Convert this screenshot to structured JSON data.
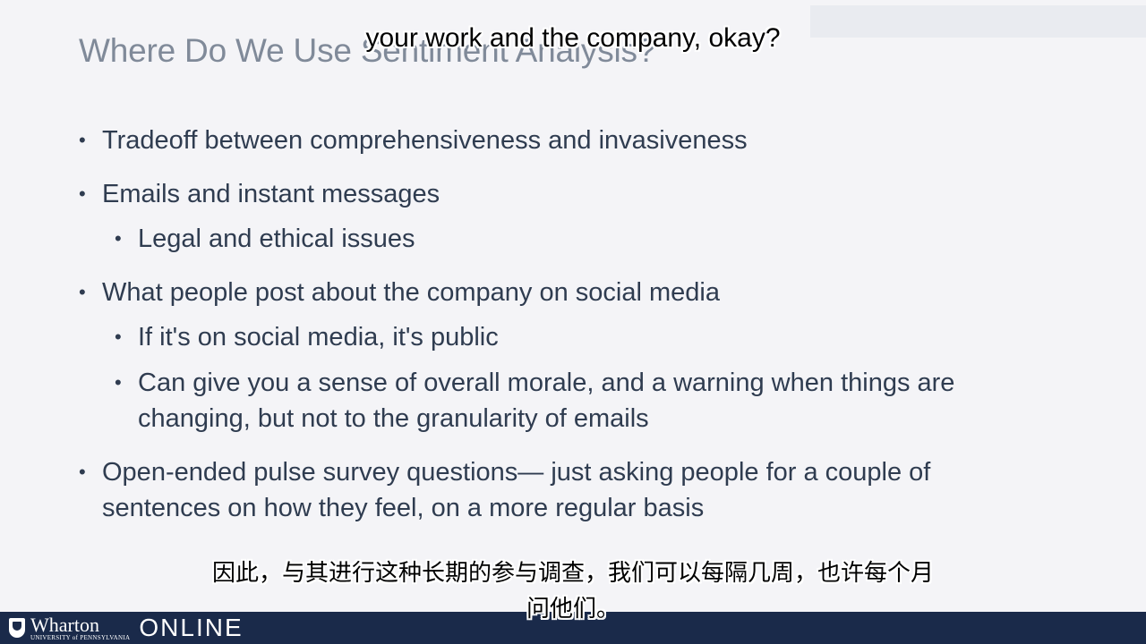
{
  "slide": {
    "title": "Where Do We Use Sentiment Analysis?",
    "bullets": [
      {
        "level": 1,
        "lines": [
          "Tradeoff between comprehensiveness and invasiveness"
        ]
      },
      {
        "level": 1,
        "lines": [
          "Emails and instant messages"
        ]
      },
      {
        "level": 2,
        "lines": [
          "Legal and ethical issues"
        ]
      },
      {
        "level": 1,
        "lines": [
          "What people post about the company on social media"
        ]
      },
      {
        "level": 2,
        "lines": [
          "If it's on social media, it's public"
        ]
      },
      {
        "level": 2,
        "lines": [
          "Can give you a sense of overall morale, and a warning when things are",
          "changing, but not to the granularity of emails"
        ]
      },
      {
        "level": 1,
        "lines": [
          "Open-ended pulse survey questions— just asking people for a couple of",
          "sentences on how they feel, on a more regular basis"
        ]
      }
    ],
    "bullet_glyph": "•"
  },
  "captions": {
    "english": "your work and the company, okay?",
    "chinese_line1": "因此，与其进行这种长期的参与调查，我们可以每隔几周，也许每个月",
    "chinese_line2": "问他们。"
  },
  "footer": {
    "brand_name": "Wharton",
    "brand_sub": "UNIVERSITY of PENNSYLVANIA",
    "online": "ONLINE",
    "logo_icon": "shield-icon"
  },
  "colors": {
    "background": "#f4f4f7",
    "title": "#808a99",
    "body_text": "#2f3c50",
    "footer_bar": "#1a2a4a"
  }
}
